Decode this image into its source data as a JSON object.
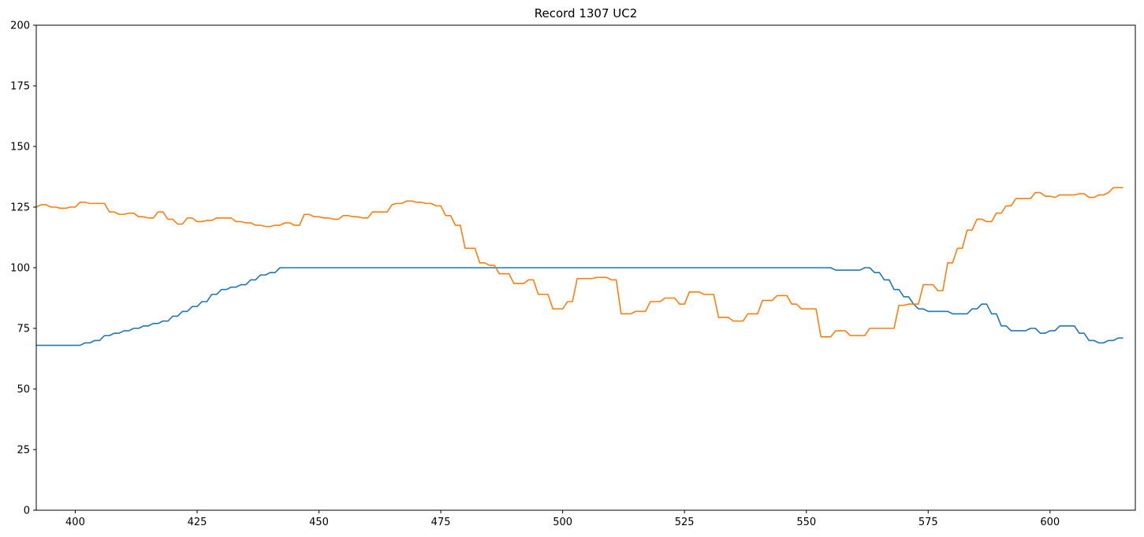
{
  "chart_data": {
    "type": "line",
    "title": "Record 1307 UC2",
    "x": [
      392,
      393,
      394,
      395,
      396,
      397,
      398,
      399,
      400,
      401,
      402,
      403,
      404,
      405,
      406,
      407,
      408,
      409,
      410,
      411,
      412,
      413,
      414,
      415,
      416,
      417,
      418,
      419,
      420,
      421,
      422,
      423,
      424,
      425,
      426,
      427,
      428,
      429,
      430,
      431,
      432,
      433,
      434,
      435,
      436,
      437,
      438,
      439,
      440,
      441,
      442,
      443,
      444,
      445,
      446,
      447,
      448,
      449,
      450,
      451,
      452,
      453,
      454,
      455,
      456,
      457,
      458,
      459,
      460,
      461,
      462,
      463,
      464,
      465,
      466,
      467,
      468,
      469,
      470,
      471,
      472,
      473,
      474,
      475,
      476,
      477,
      478,
      479,
      480,
      481,
      482,
      483,
      484,
      485,
      486,
      487,
      488,
      489,
      490,
      491,
      492,
      493,
      494,
      495,
      496,
      497,
      498,
      499,
      500,
      501,
      502,
      503,
      504,
      505,
      506,
      507,
      508,
      509,
      510,
      511,
      512,
      513,
      514,
      515,
      516,
      517,
      518,
      519,
      520,
      521,
      522,
      523,
      524,
      525,
      526,
      527,
      528,
      529,
      530,
      531,
      532,
      533,
      534,
      535,
      536,
      537,
      538,
      539,
      540,
      541,
      542,
      543,
      544,
      545,
      546,
      547,
      548,
      549,
      550,
      551,
      552,
      553,
      554,
      555,
      556,
      557,
      558,
      559,
      560,
      561,
      562,
      563,
      564,
      565,
      566,
      567,
      568,
      569,
      570,
      571,
      572,
      573,
      574,
      575,
      576,
      577,
      578,
      579,
      580,
      581,
      582,
      583,
      584,
      585,
      586,
      587,
      588,
      589,
      590,
      591,
      592,
      593,
      594,
      595,
      596,
      597,
      598,
      599,
      600,
      601,
      602,
      603,
      604,
      605,
      606,
      607,
      608,
      609,
      610,
      611,
      612,
      613,
      614,
      615
    ],
    "series": [
      {
        "color": "#1f77b4",
        "values": [
          68,
          68,
          68,
          68,
          68,
          68,
          68,
          68,
          68,
          68,
          69,
          69,
          70,
          70,
          72,
          72,
          73,
          73,
          74,
          74,
          75,
          75,
          76,
          76,
          77,
          77,
          78,
          78,
          80,
          80,
          82,
          82,
          84,
          84,
          86,
          86,
          89,
          89,
          91,
          91,
          92,
          92,
          93,
          93,
          95,
          95,
          97,
          97,
          98,
          98,
          100,
          100,
          100,
          100,
          100,
          100,
          100,
          100,
          100,
          100,
          100,
          100,
          100,
          100,
          100,
          100,
          100,
          100,
          100,
          100,
          100,
          100,
          100,
          100,
          100,
          100,
          100,
          100,
          100,
          100,
          100,
          100,
          100,
          100,
          100,
          100,
          100,
          100,
          100,
          100,
          100,
          100,
          100,
          100,
          100,
          100,
          100,
          100,
          100,
          100,
          100,
          100,
          100,
          100,
          100,
          100,
          100,
          100,
          100,
          100,
          100,
          100,
          100,
          100,
          100,
          100,
          100,
          100,
          100,
          100,
          100,
          100,
          100,
          100,
          100,
          100,
          100,
          100,
          100,
          100,
          100,
          100,
          100,
          100,
          100,
          100,
          100,
          100,
          100,
          100,
          100,
          100,
          100,
          100,
          100,
          100,
          100,
          100,
          100,
          100,
          100,
          100,
          100,
          100,
          100,
          100,
          100,
          100,
          100,
          100,
          100,
          100,
          100,
          100,
          99,
          99,
          99,
          99,
          99,
          99,
          100,
          100,
          98,
          98,
          95,
          95,
          91,
          91,
          88,
          88,
          85,
          83,
          83,
          82,
          82,
          82,
          82,
          82,
          81,
          81,
          81,
          81,
          83,
          83,
          85,
          85,
          81,
          81,
          76,
          76,
          74,
          74,
          74,
          74,
          75,
          75,
          73,
          73,
          74,
          74,
          76,
          76,
          76,
          76,
          73,
          73,
          70,
          70,
          69,
          69,
          70,
          70,
          71,
          71
        ]
      },
      {
        "color": "#ff7f0e",
        "values": [
          125,
          126,
          126,
          125,
          125,
          124.5,
          124.5,
          125,
          125,
          127,
          127,
          126.5,
          126.5,
          126.5,
          126.5,
          123,
          123,
          122,
          122,
          122.5,
          122.5,
          121,
          121,
          120.5,
          120.5,
          123,
          123,
          120,
          120,
          118,
          118,
          120.5,
          120.5,
          119,
          119,
          119.5,
          119.5,
          120.5,
          120.5,
          120.5,
          120.5,
          119,
          119,
          118.5,
          118.5,
          117.5,
          117.5,
          117,
          117,
          117.5,
          117.5,
          118.5,
          118.5,
          117.5,
          117.5,
          122,
          122,
          121,
          121,
          120.5,
          120.5,
          120,
          120,
          121.5,
          121.5,
          121,
          121,
          120.5,
          120.5,
          123,
          123,
          123,
          123,
          126,
          126.5,
          126.5,
          127.5,
          127.5,
          127,
          127,
          126.5,
          126.5,
          125.5,
          125.5,
          121.5,
          121.5,
          117.5,
          117.5,
          108,
          108,
          108,
          102,
          102,
          101,
          101,
          97.5,
          97.5,
          97.5,
          93.5,
          93.5,
          93.5,
          95,
          95,
          89,
          89,
          89,
          83,
          83,
          83,
          86,
          86,
          95.5,
          95.5,
          95.5,
          95.5,
          96,
          96,
          96,
          95,
          95,
          81,
          81,
          81,
          82,
          82,
          82,
          86,
          86,
          86,
          87.5,
          87.5,
          87.5,
          85,
          85,
          90,
          90,
          90,
          89,
          89,
          89,
          79.5,
          79.5,
          79.5,
          78,
          78,
          78,
          81,
          81,
          81,
          86.5,
          86.5,
          86.5,
          88.5,
          88.5,
          88.5,
          85,
          85,
          83,
          83,
          83,
          83,
          71.5,
          71.5,
          71.5,
          74,
          74,
          74,
          72,
          72,
          72,
          72,
          75,
          75,
          75,
          75,
          75,
          75,
          84.5,
          84.5,
          85,
          85,
          85,
          93,
          93,
          93,
          90.5,
          90.5,
          102,
          102,
          108,
          108,
          115.5,
          115.5,
          120,
          120,
          119,
          119,
          122.5,
          122.5,
          125.5,
          125.5,
          128.5,
          128.5,
          128.5,
          128.5,
          131,
          131,
          129.5,
          129.5,
          129,
          130,
          130,
          130,
          130,
          130.5,
          130.5,
          129,
          129,
          130,
          130,
          131,
          133,
          133,
          133
        ]
      }
    ],
    "xlim": [
      392,
      617.5
    ],
    "ylim": [
      0,
      200
    ],
    "xticks": [
      400,
      425,
      450,
      475,
      500,
      525,
      550,
      575,
      600
    ],
    "yticks": [
      0,
      25,
      50,
      75,
      100,
      125,
      150,
      175,
      200
    ],
    "grid": false
  }
}
